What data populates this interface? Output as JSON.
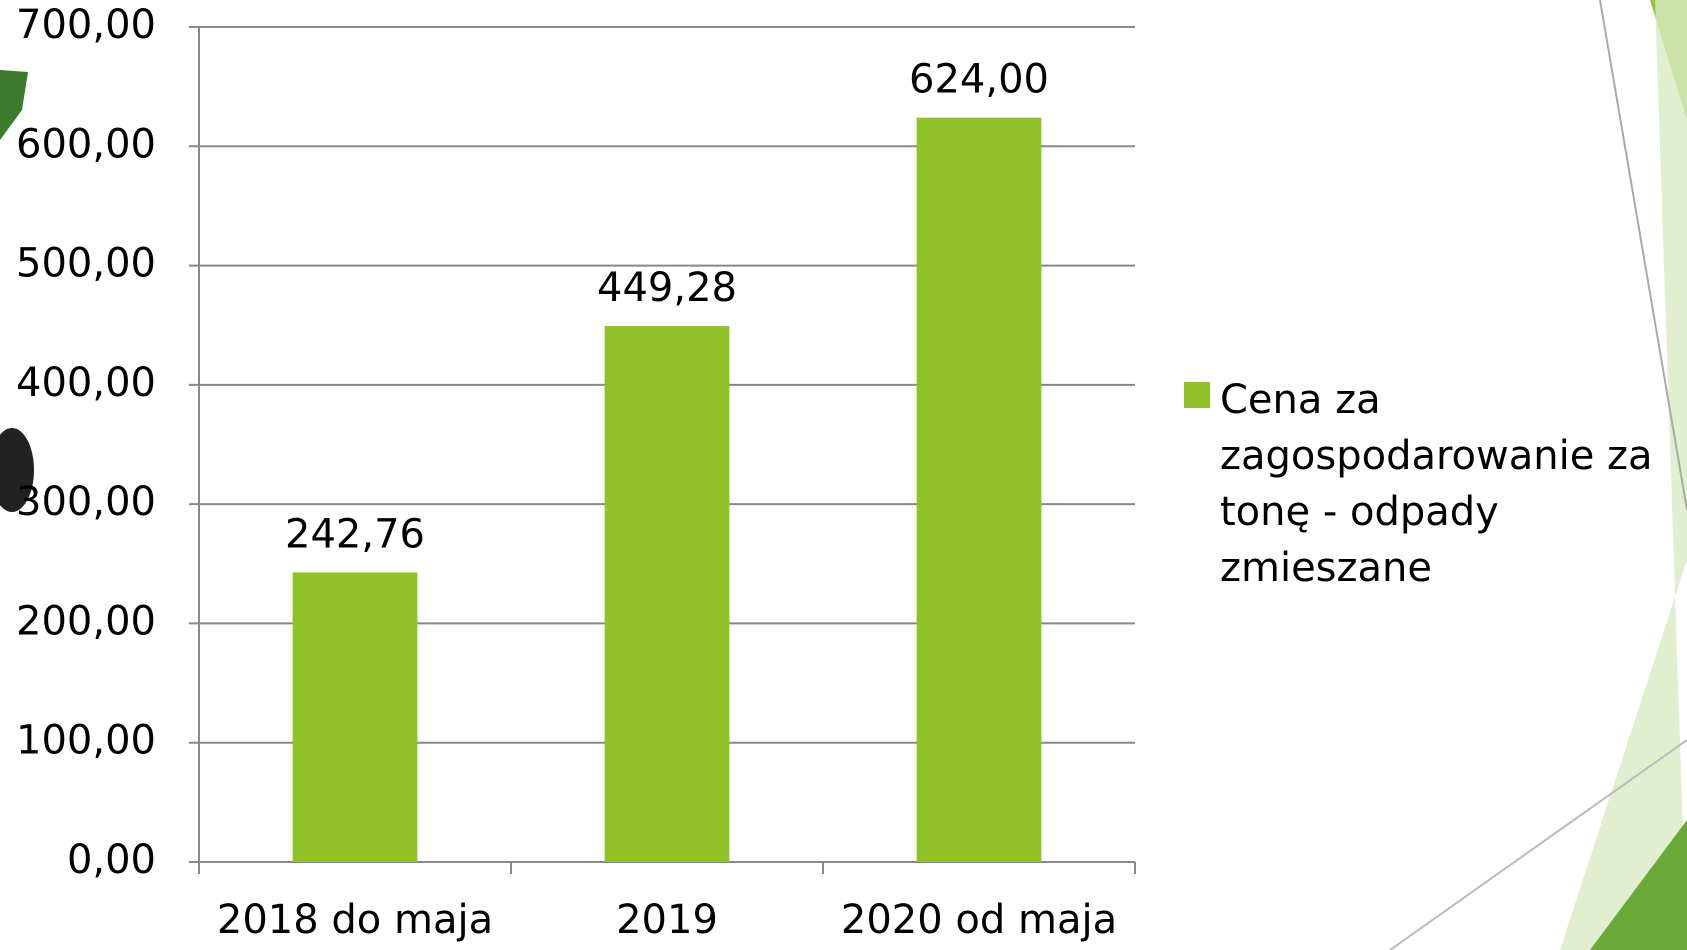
{
  "chart_data": {
    "type": "bar",
    "categories": [
      "2018 do maja",
      "2019",
      "2020 od maja"
    ],
    "series": [
      {
        "name": "Cena za zagospodarowanie za tonę - odpady zmieszane",
        "color": "#92c22a",
        "values": [
          242.76,
          449.28,
          624.0
        ],
        "value_labels": [
          "242,76",
          "449,28",
          "624,00"
        ]
      }
    ],
    "ylim": [
      0,
      700
    ],
    "yticks": [
      {
        "value": 0,
        "label": "0,00"
      },
      {
        "value": 100,
        "label": "100,00"
      },
      {
        "value": 200,
        "label": "200,00"
      },
      {
        "value": 300,
        "label": "300,00"
      },
      {
        "value": 400,
        "label": "400,00"
      },
      {
        "value": 500,
        "label": "500,00"
      },
      {
        "value": 600,
        "label": "600,00"
      },
      {
        "value": 700,
        "label": "700,00"
      }
    ],
    "grid": true,
    "legend": "right"
  }
}
